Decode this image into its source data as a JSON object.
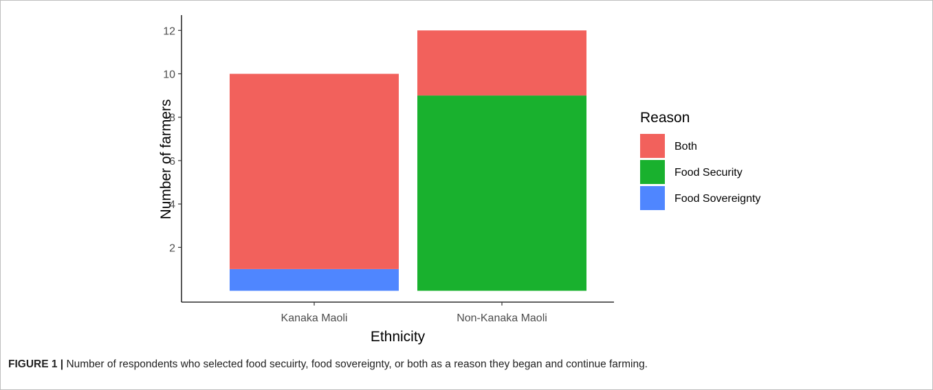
{
  "figure": {
    "caption_label": "FIGURE 1 |",
    "caption_text": " Number of respondents who selected food secuirty, food sovereignty, or both as a reason they began and continue farming."
  },
  "chart_data": {
    "type": "bar",
    "stacked": true,
    "categories": [
      "Kanaka Maoli",
      "Non-Kanaka Maoli"
    ],
    "series": [
      {
        "name": "Food Sovereignty",
        "values": [
          1,
          0
        ],
        "color": "#4f86ff"
      },
      {
        "name": "Food Security",
        "values": [
          0,
          9
        ],
        "color": "#19b12e"
      },
      {
        "name": "Both",
        "values": [
          9,
          3
        ],
        "color": "#f2615c"
      }
    ],
    "xlabel": "Ethnicity",
    "ylabel": "Number of farmers",
    "ylim": [
      0,
      12.6
    ],
    "yticks": [
      2,
      4,
      6,
      8,
      10,
      12
    ],
    "grid": false,
    "legend": {
      "title": "Reason",
      "placement": "right",
      "order": [
        "Both",
        "Food Security",
        "Food Sovereignty"
      ]
    }
  }
}
